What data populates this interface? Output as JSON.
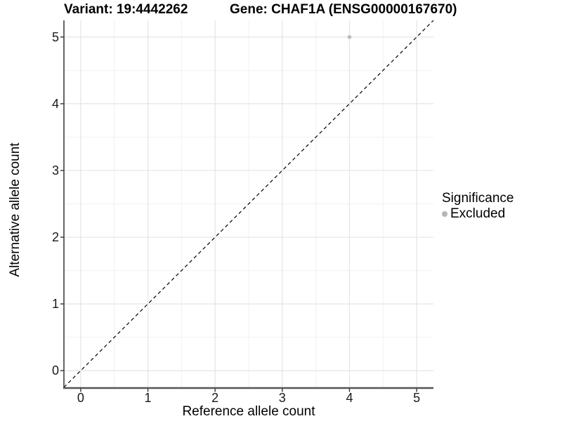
{
  "title": {
    "variant": "Variant: 19:4442262",
    "gene": "Gene: CHAF1A (ENSG00000167670)"
  },
  "axes": {
    "x_label": "Reference allele count",
    "y_label": "Alternative allele count"
  },
  "legend": {
    "title": "Significance",
    "items": [
      {
        "label": "Excluded",
        "color": "#b5b5b5"
      }
    ]
  },
  "colors": {
    "background": "#ffffff",
    "grid_major": "#e4e4e4",
    "grid_minor": "#f1f1f1",
    "axis_line_y": "#3f3f3f",
    "axis_line_x": "#555555",
    "tick_mark": "#333333",
    "dashed_line": "#000000",
    "point": "#bdbdbd"
  },
  "chart_data": {
    "type": "scatter",
    "title": "Variant: 19:4442262   Gene: CHAF1A (ENSG00000167670)",
    "xlabel": "Reference allele count",
    "ylabel": "Alternative allele count",
    "xlim": [
      -0.25,
      5.25
    ],
    "ylim": [
      -0.25,
      5.25
    ],
    "x_ticks": [
      0,
      1,
      2,
      3,
      4,
      5
    ],
    "y_ticks": [
      0,
      1,
      2,
      3,
      4,
      5
    ],
    "x_minor_ticks": [
      0.5,
      1.5,
      2.5,
      3.5,
      4.5
    ],
    "y_minor_ticks": [
      0.5,
      1.5,
      2.5,
      3.5,
      4.5
    ],
    "grid": true,
    "legend_position": "right",
    "legend_title": "Significance",
    "series": [
      {
        "name": "Excluded",
        "color": "#bdbdbd",
        "points": [
          {
            "x": 4,
            "y": 5
          }
        ]
      }
    ],
    "reference_line": {
      "type": "identity",
      "slope": 1,
      "intercept": 0,
      "style": "dashed",
      "color": "#000000"
    }
  }
}
